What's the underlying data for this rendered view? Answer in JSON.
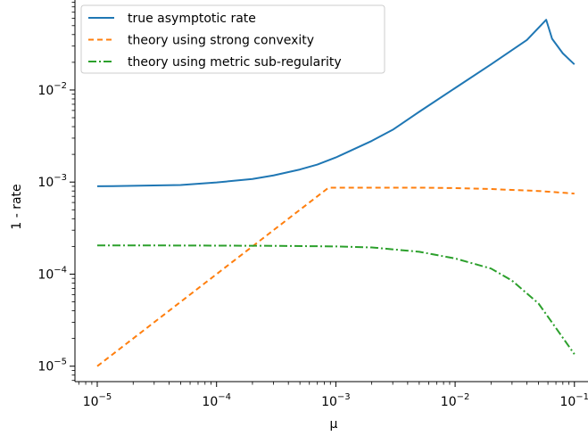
{
  "chart_data": {
    "type": "line",
    "xlabel": "μ",
    "ylabel": "1 - rate",
    "xscale": "log",
    "yscale": "log",
    "xlim": [
      6.5e-06,
      0.13
    ],
    "ylim": [
      6.8e-06,
      0.095
    ],
    "grid": false,
    "legend_position": "top-left",
    "x_ticks": [
      {
        "value": 1e-05,
        "base": "10",
        "exp": "−5"
      },
      {
        "value": 0.0001,
        "base": "10",
        "exp": "−4"
      },
      {
        "value": 0.001,
        "base": "10",
        "exp": "−3"
      },
      {
        "value": 0.01,
        "base": "10",
        "exp": "−2"
      },
      {
        "value": 0.1,
        "base": "10",
        "exp": "−1"
      }
    ],
    "y_ticks": [
      {
        "value": 1e-05,
        "base": "10",
        "exp": "−5"
      },
      {
        "value": 0.0001,
        "base": "10",
        "exp": "−4"
      },
      {
        "value": 0.001,
        "base": "10",
        "exp": "−3"
      },
      {
        "value": 0.01,
        "base": "10",
        "exp": "−2"
      }
    ],
    "series": [
      {
        "name": "true asymptotic rate",
        "color": "#1f77b4",
        "dash": "solid",
        "points": [
          [
            1e-05,
            0.0009
          ],
          [
            2e-05,
            0.00091
          ],
          [
            5e-05,
            0.00093
          ],
          [
            0.0001,
            0.00099
          ],
          [
            0.0002,
            0.00108
          ],
          [
            0.0003,
            0.00118
          ],
          [
            0.0005,
            0.00137
          ],
          [
            0.0007,
            0.00155
          ],
          [
            0.001,
            0.00185
          ],
          [
            0.002,
            0.0028
          ],
          [
            0.003,
            0.0037
          ],
          [
            0.005,
            0.0058
          ],
          [
            0.01,
            0.0105
          ],
          [
            0.02,
            0.019
          ],
          [
            0.04,
            0.035
          ],
          [
            0.058,
            0.058
          ],
          [
            0.065,
            0.036
          ],
          [
            0.08,
            0.025
          ],
          [
            0.1,
            0.019
          ]
        ]
      },
      {
        "name": "theory using strong convexity",
        "color": "#ff7f0e",
        "dash": "dashed",
        "points": [
          [
            1e-05,
            1e-05
          ],
          [
            0.0001,
            0.0001
          ],
          [
            0.00087,
            0.00087
          ],
          [
            0.001,
            0.00087
          ],
          [
            0.005,
            0.00087
          ],
          [
            0.01,
            0.00086
          ],
          [
            0.02,
            0.00084
          ],
          [
            0.05,
            0.0008
          ],
          [
            0.1,
            0.00075
          ]
        ]
      },
      {
        "name": "theory using metric sub-regularity",
        "color": "#2ca02c",
        "dash": "dashdot",
        "points": [
          [
            1e-05,
            0.000205
          ],
          [
            3e-05,
            0.000205
          ],
          [
            0.0001,
            0.000204
          ],
          [
            0.0003,
            0.000203
          ],
          [
            0.001,
            0.0002
          ],
          [
            0.002,
            0.000195
          ],
          [
            0.005,
            0.000175
          ],
          [
            0.01,
            0.000148
          ],
          [
            0.02,
            0.000115
          ],
          [
            0.03,
            8.5e-05
          ],
          [
            0.05,
            4.8e-05
          ],
          [
            0.07,
            2.6e-05
          ],
          [
            0.1,
            1.35e-05
          ]
        ]
      }
    ]
  }
}
